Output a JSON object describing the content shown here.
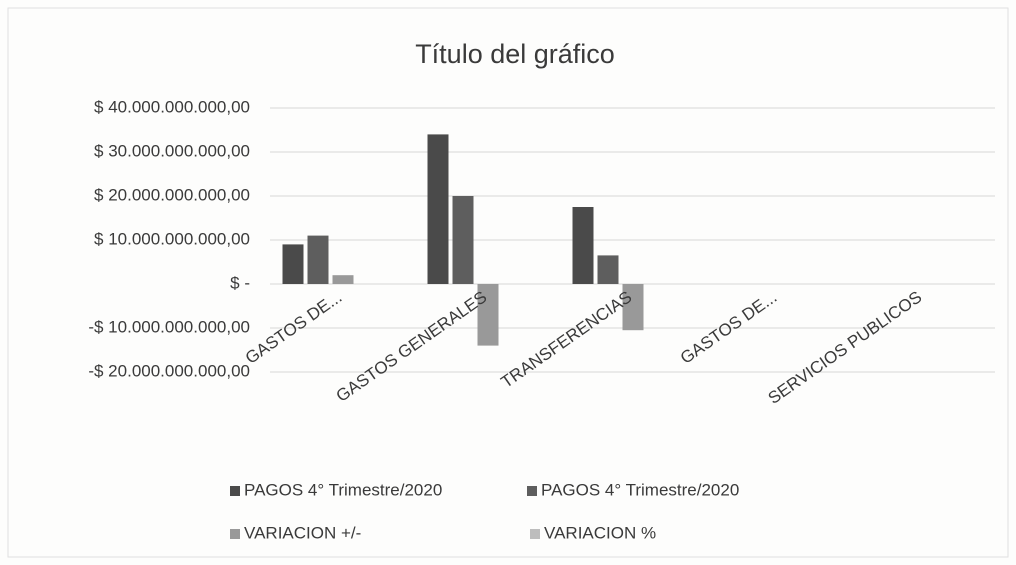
{
  "chart_data": {
    "type": "bar",
    "title": "Título del gráfico",
    "categories": [
      "GASTOS DE...",
      "GASTOS GENERALES",
      "TRANSFERENCIAS",
      "GASTOS DE...",
      "SERVICIOS PUBLICOS"
    ],
    "series": [
      {
        "name": "PAGOS  4° Trimestre/2020",
        "color": "#4a4a4a",
        "values": [
          9000000000,
          34000000000,
          17500000000,
          0,
          0
        ]
      },
      {
        "name": "PAGOS  4° Trimestre/2020",
        "color": "#5e5e5e",
        "values": [
          11000000000,
          20000000000,
          6500000000,
          0,
          0
        ]
      },
      {
        "name": "VARIACION +/-",
        "color": "#999999",
        "values": [
          2000000000,
          -14000000000,
          -10500000000,
          0,
          0
        ]
      },
      {
        "name": "VARIACION %",
        "color": "#bdbdbd",
        "values": [
          0,
          0,
          0,
          0,
          0
        ]
      }
    ],
    "ylim": [
      -20000000000,
      40000000000
    ],
    "yticks": [
      {
        "value": 40000000000,
        "label": "$ 40.000.000.000,00"
      },
      {
        "value": 30000000000,
        "label": "$ 30.000.000.000,00"
      },
      {
        "value": 20000000000,
        "label": "$ 20.000.000.000,00"
      },
      {
        "value": 10000000000,
        "label": "$ 10.000.000.000,00"
      },
      {
        "value": 0,
        "label": "$ -"
      },
      {
        "value": -10000000000,
        "label": "-$ 10.000.000.000,00"
      },
      {
        "value": -20000000000,
        "label": "-$ 20.000.000.000,00"
      }
    ],
    "grid": true
  }
}
